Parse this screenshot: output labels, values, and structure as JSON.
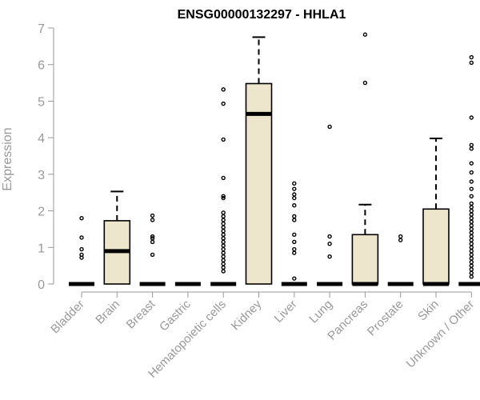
{
  "chart_data": {
    "type": "boxplot",
    "title": "ENSG00000132297 - HHLA1",
    "ylabel": "Expression",
    "xlabel": "",
    "ylim": [
      0,
      7
    ],
    "yticks": [
      0,
      1,
      2,
      3,
      4,
      5,
      6,
      7
    ],
    "box_fill": "#ede6cc",
    "categories": [
      "Bladder",
      "Brain",
      "Breast",
      "Gastric",
      "Hematopoietic cells",
      "Kidney",
      "Liver",
      "Lung",
      "Pancreas",
      "Prostate",
      "Skin",
      "Unknown / Other"
    ],
    "boxes": [
      {
        "q1": 0,
        "median": 0,
        "q3": 0,
        "whisker_low": 0,
        "whisker_high": 0,
        "outliers": [
          0.72,
          0.8,
          0.95,
          1.27,
          1.8
        ]
      },
      {
        "q1": 0,
        "median": 0.9,
        "q3": 1.73,
        "whisker_low": 0,
        "whisker_high": 2.53,
        "outliers": []
      },
      {
        "q1": 0,
        "median": 0,
        "q3": 0,
        "whisker_low": 0,
        "whisker_high": 0,
        "outliers": [
          0.8,
          1.15,
          1.25,
          1.3,
          1.75,
          1.87
        ]
      },
      {
        "q1": 0,
        "median": 0,
        "q3": 0,
        "whisker_low": 0,
        "whisker_high": 0,
        "outliers": []
      },
      {
        "q1": 0,
        "median": 0,
        "q3": 0,
        "whisker_low": 0,
        "whisker_high": 0,
        "outliers": [
          0.35,
          0.45,
          0.55,
          0.65,
          0.75,
          0.85,
          0.95,
          1.05,
          1.15,
          1.25,
          1.35,
          1.45,
          1.55,
          1.65,
          1.75,
          1.85,
          1.95,
          2.35,
          2.4,
          2.9,
          3.95,
          4.93,
          5.32
        ]
      },
      {
        "q1": 0,
        "median": 4.65,
        "q3": 5.48,
        "whisker_low": 0,
        "whisker_high": 6.75,
        "outliers": []
      },
      {
        "q1": 0,
        "median": 0,
        "q3": 0,
        "whisker_low": 0,
        "whisker_high": 0,
        "outliers": [
          0.15,
          0.85,
          0.95,
          1.15,
          1.35,
          1.75,
          1.85,
          2.15,
          2.35,
          2.45,
          2.6,
          2.75
        ]
      },
      {
        "q1": 0,
        "median": 0,
        "q3": 0,
        "whisker_low": 0,
        "whisker_high": 0,
        "outliers": [
          0.75,
          1.1,
          1.3,
          4.3
        ]
      },
      {
        "q1": 0,
        "median": 0,
        "q3": 1.35,
        "whisker_low": 0,
        "whisker_high": 2.17,
        "outliers": [
          5.5,
          6.82
        ]
      },
      {
        "q1": 0,
        "median": 0,
        "q3": 0,
        "whisker_low": 0,
        "whisker_high": 0,
        "outliers": [
          1.2,
          1.3
        ]
      },
      {
        "q1": 0,
        "median": 0,
        "q3": 2.05,
        "whisker_low": 0,
        "whisker_high": 3.98,
        "outliers": []
      },
      {
        "q1": 0,
        "median": 0,
        "q3": 0,
        "whisker_low": 0,
        "whisker_high": 0,
        "outliers": [
          0.2,
          0.3,
          0.4,
          0.5,
          0.6,
          0.7,
          0.8,
          0.9,
          1.0,
          1.1,
          1.2,
          1.3,
          1.4,
          1.5,
          1.6,
          1.7,
          1.8,
          1.9,
          2.0,
          2.1,
          2.2,
          2.4,
          2.6,
          2.8,
          3.05,
          3.3,
          3.7,
          3.8,
          4.55,
          6.05,
          6.2
        ]
      }
    ]
  }
}
